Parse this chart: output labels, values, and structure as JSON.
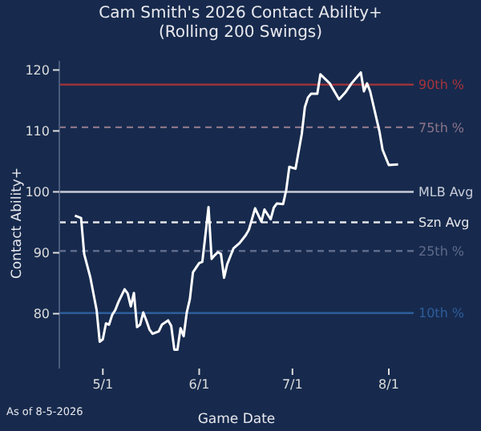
{
  "chart_data": {
    "type": "line",
    "title": "Cam Smith's 2026 Contact Ability+",
    "subtitle": "(Rolling 200 Swings)",
    "xlabel": "Game Date",
    "ylabel": "Contact Ability+",
    "annotations": [
      "As of 8-5-2026"
    ],
    "x": [
      "2026-04-22",
      "2026-04-24",
      "2026-04-25",
      "2026-04-27",
      "2026-04-29",
      "2026-04-30",
      "2026-05-01",
      "2026-05-02",
      "2026-05-03",
      "2026-05-04",
      "2026-05-05",
      "2026-05-06",
      "2026-05-08",
      "2026-05-09",
      "2026-05-10",
      "2026-05-11",
      "2026-05-12",
      "2026-05-13",
      "2026-05-14",
      "2026-05-15",
      "2026-05-16",
      "2026-05-17",
      "2026-05-19",
      "2026-05-20",
      "2026-05-22",
      "2026-05-23",
      "2026-05-24",
      "2026-05-25",
      "2026-05-26",
      "2026-05-27",
      "2026-05-28",
      "2026-05-29",
      "2026-05-30",
      "2026-06-01",
      "2026-06-02",
      "2026-06-03",
      "2026-06-04",
      "2026-06-05",
      "2026-06-06",
      "2026-06-07",
      "2026-06-08",
      "2026-06-09",
      "2026-06-10",
      "2026-06-12",
      "2026-06-14",
      "2026-06-16",
      "2026-06-17",
      "2026-06-19",
      "2026-06-21",
      "2026-06-22",
      "2026-06-24",
      "2026-06-25",
      "2026-06-26",
      "2026-06-28",
      "2026-06-29",
      "2026-06-30",
      "2026-07-02",
      "2026-07-04",
      "2026-07-05",
      "2026-07-06",
      "2026-07-07",
      "2026-07-09",
      "2026-07-10",
      "2026-07-13",
      "2026-07-16",
      "2026-07-18",
      "2026-07-20",
      "2026-07-23",
      "2026-07-24",
      "2026-07-25",
      "2026-07-26",
      "2026-07-29",
      "2026-07-30",
      "2026-08-01",
      "2026-08-04"
    ],
    "series": [
      {
        "color": "#ffffff",
        "values": [
          96.1,
          95.7,
          89.8,
          85.9,
          80.6,
          75.4,
          75.8,
          78.4,
          78.2,
          79.8,
          80.6,
          81.9,
          84.0,
          83.3,
          81.2,
          83.4,
          77.8,
          78.2,
          80.2,
          78.9,
          77.4,
          76.7,
          77.1,
          78.2,
          78.9,
          78.0,
          74.1,
          74.1,
          77.6,
          76.3,
          80.2,
          82.4,
          86.8,
          88.3,
          88.5,
          92.9,
          97.5,
          89.0,
          89.6,
          90.1,
          89.8,
          85.9,
          88.1,
          90.7,
          91.6,
          92.9,
          93.8,
          97.3,
          95.1,
          97.1,
          95.5,
          97.4,
          98.1,
          98.0,
          100.3,
          104.1,
          103.8,
          109.5,
          113.9,
          115.5,
          116.1,
          116.1,
          119.3,
          117.8,
          115.2,
          116.3,
          117.8,
          119.6,
          116.5,
          117.8,
          116.5,
          109.9,
          106.9,
          104.4,
          104.5
        ]
      }
    ],
    "xlim": [
      "2026-04-17",
      "2026-08-09"
    ],
    "xticks": [
      {
        "value": "2026-05-01",
        "label": "5/1"
      },
      {
        "value": "2026-06-01",
        "label": "6/1"
      },
      {
        "value": "2026-07-01",
        "label": "7/1"
      },
      {
        "value": "2026-08-01",
        "label": "8/1"
      }
    ],
    "ylim": [
      71,
      121.5
    ],
    "yticks": [
      80,
      90,
      100,
      110,
      120
    ],
    "ref_lines": [
      {
        "axis": "y",
        "value": 117.6,
        "label": "90th %",
        "color": "#a8343a",
        "line_style": "solid"
      },
      {
        "axis": "y",
        "value": 110.6,
        "label": "75th %",
        "color": "#8a7488",
        "line_style": "dashed"
      },
      {
        "axis": "y",
        "value": 100,
        "label": "MLB Avg",
        "color": "#c8ccd8",
        "line_style": "solid"
      },
      {
        "axis": "y",
        "value": 95,
        "label": "Szn Avg",
        "color": "#e6e6ea",
        "line_style": "dashed"
      },
      {
        "axis": "y",
        "value": 90.3,
        "label": "25th %",
        "color": "#5f6a8a",
        "line_style": "dashed"
      },
      {
        "axis": "y",
        "value": 80.1,
        "label": "10th %",
        "color": "#2e5e9c",
        "line_style": "solid"
      }
    ],
    "grid": false,
    "legend": false,
    "marker": "none",
    "line_style": "solid"
  }
}
